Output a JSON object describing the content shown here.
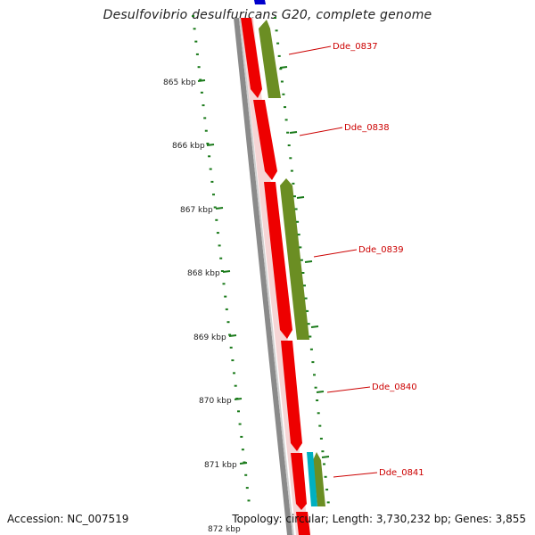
{
  "title": "Desulfovibrio desulfuricans G20, complete genome",
  "accession_text": "Accession: NC_007519",
  "summary_text": "Topology: circular; Length: 3,730,232 bp; Genes: 3,855",
  "colors": {
    "forward_cds": "#ee0000",
    "reverse_cds": "#6b8e23",
    "other_feature": "#0000cc",
    "rna_feature": "#00b0c0",
    "backbone": "#888888",
    "tick_marks": "#1a7a1a",
    "gene_label": "#cc0000"
  },
  "kbp_ticks": [
    {
      "label": "865 kbp"
    },
    {
      "label": "866 kbp"
    },
    {
      "label": "867 kbp"
    },
    {
      "label": "868 kbp"
    },
    {
      "label": "869 kbp"
    },
    {
      "label": "870 kbp"
    },
    {
      "label": "871 kbp"
    },
    {
      "label": "872 kbp"
    }
  ],
  "gene_labels": [
    {
      "name": "Dde_0837"
    },
    {
      "name": "Dde_0838"
    },
    {
      "name": "Dde_0839"
    },
    {
      "name": "Dde_0840"
    },
    {
      "name": "Dde_0841"
    }
  ]
}
